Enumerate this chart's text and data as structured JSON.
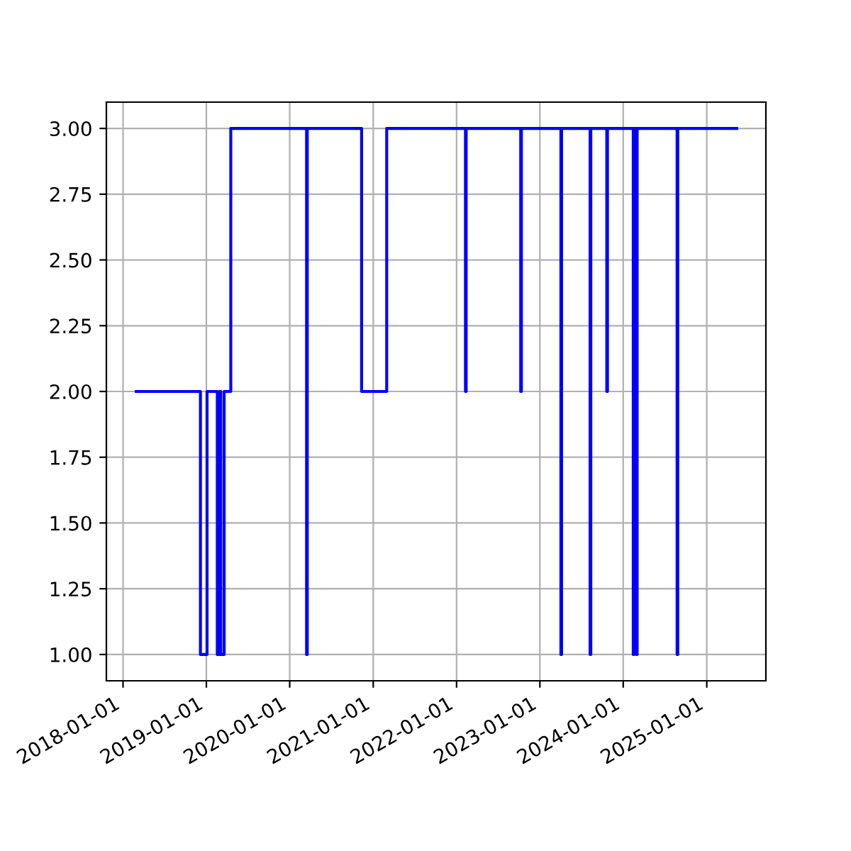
{
  "chart_data": {
    "type": "step",
    "x": [
      "2018-02-28",
      "2018-12-06",
      "2019-01-04",
      "2019-02-18",
      "2019-02-28",
      "2019-03-05",
      "2019-03-20",
      "2019-04-18",
      "2020-03-15",
      "2020-03-18",
      "2020-11-11",
      "2021-03-01",
      "2022-02-09",
      "2022-02-12",
      "2022-10-09",
      "2022-10-12",
      "2023-04-03",
      "2023-04-06",
      "2023-08-09",
      "2023-08-12",
      "2023-10-21",
      "2023-10-24",
      "2024-02-14",
      "2024-02-17",
      "2024-02-28",
      "2024-03-02",
      "2024-08-24",
      "2024-08-27",
      "2025-05-12"
    ],
    "series": [
      {
        "color": "#0000ff",
        "values": [
          2,
          1,
          2,
          1,
          2,
          1,
          2,
          3,
          1,
          3,
          2,
          3,
          2,
          3,
          2,
          3,
          1,
          3,
          1,
          3,
          2,
          3,
          1,
          3,
          1,
          3,
          1,
          3,
          3
        ]
      }
    ],
    "xlim": [
      "2017-10-20",
      "2025-09-17"
    ],
    "xticks": [
      "2018-01-01",
      "2019-01-01",
      "2020-01-01",
      "2021-01-01",
      "2022-01-01",
      "2023-01-01",
      "2024-01-01",
      "2025-01-01"
    ],
    "ylim": [
      0.9,
      3.1
    ],
    "yticks": [
      {
        "value": 1,
        "label": "1.00"
      },
      {
        "value": 1.25,
        "label": "1.25"
      },
      {
        "value": 1.5,
        "label": "1.50"
      },
      {
        "value": 1.75,
        "label": "1.75"
      },
      {
        "value": 2,
        "label": "2.00"
      },
      {
        "value": 2.25,
        "label": "2.25"
      },
      {
        "value": 2.5,
        "label": "2.50"
      },
      {
        "value": 2.75,
        "label": "2.75"
      },
      {
        "value": 3,
        "label": "3.00"
      }
    ],
    "grid": true
  }
}
